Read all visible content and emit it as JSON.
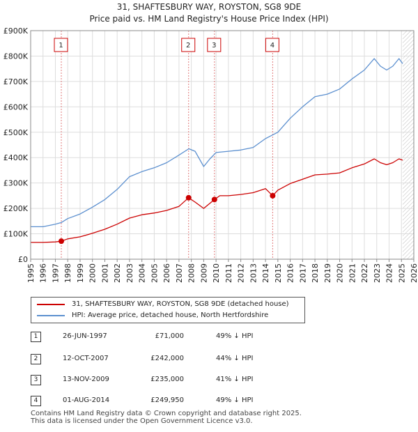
{
  "title": {
    "line1": "31, SHAFTESBURY WAY, ROYSTON, SG8 9DE",
    "line2": "Price paid vs. HM Land Registry's House Price Index (HPI)"
  },
  "legend": {
    "red_label": "31, SHAFTESBURY WAY, ROYSTON, SG8 9DE (detached house)",
    "blue_label": "HPI: Average price, detached house, North Hertfordshire"
  },
  "transactions": [
    {
      "num": "1",
      "date": "26-JUN-1997",
      "price": "£71,000",
      "hpi": "49% ↓ HPI"
    },
    {
      "num": "2",
      "date": "12-OCT-2007",
      "price": "£242,000",
      "hpi": "44% ↓ HPI"
    },
    {
      "num": "3",
      "date": "13-NOV-2009",
      "price": "£235,000",
      "hpi": "41% ↓ HPI"
    },
    {
      "num": "4",
      "date": "01-AUG-2014",
      "price": "£249,950",
      "hpi": "49% ↓ HPI"
    }
  ],
  "footer": {
    "line1": "Contains HM Land Registry data © Crown copyright and database right 2025.",
    "line2": "This data is licensed under the Open Government Licence v3.0."
  },
  "colors": {
    "red": "#cc0000",
    "blue": "#5b8fcf",
    "grid": "#dddddd",
    "vline": "#e07a7a",
    "shade": "#dce6f4"
  },
  "chart_data": {
    "type": "line",
    "title": "Price paid vs. HM Land Registry's House Price Index (HPI)",
    "xlabel": "",
    "ylabel": "",
    "xlim": [
      1995,
      2026
    ],
    "ylim": [
      0,
      900000
    ],
    "yticks": [
      0,
      100000,
      200000,
      300000,
      400000,
      500000,
      600000,
      700000,
      800000,
      900000
    ],
    "ytick_labels": [
      "£0",
      "£100K",
      "£200K",
      "£300K",
      "£400K",
      "£500K",
      "£600K",
      "£700K",
      "£800K",
      "£900K"
    ],
    "xticks": [
      1995,
      1996,
      1997,
      1998,
      1999,
      2000,
      2001,
      2002,
      2003,
      2004,
      2005,
      2006,
      2007,
      2008,
      2009,
      2010,
      2011,
      2012,
      2013,
      2014,
      2015,
      2016,
      2017,
      2018,
      2019,
      2020,
      2021,
      2022,
      2023,
      2024,
      2025,
      2026
    ],
    "future_from": 2025.1,
    "series": [
      {
        "name": "HPI: Average price, detached house, North Hertfordshire",
        "color": "#5b8fcf",
        "x": [
          1995,
          1996,
          1997,
          1997.5,
          1998,
          1999,
          2000,
          2001,
          2002,
          2003,
          2004,
          2005,
          2006,
          2007,
          2007.8,
          2008.3,
          2009,
          2009.5,
          2010,
          2011,
          2012,
          2013,
          2014,
          2014.6,
          2015,
          2016,
          2017,
          2018,
          2019,
          2020,
          2021,
          2022,
          2022.8,
          2023.3,
          2023.8,
          2024.3,
          2024.8,
          2025.1
        ],
        "y": [
          128000,
          128000,
          138000,
          145000,
          160000,
          178000,
          205000,
          235000,
          275000,
          325000,
          345000,
          360000,
          380000,
          410000,
          435000,
          425000,
          365000,
          395000,
          420000,
          425000,
          430000,
          440000,
          475000,
          490000,
          500000,
          555000,
          600000,
          640000,
          650000,
          670000,
          710000,
          745000,
          790000,
          760000,
          745000,
          760000,
          790000,
          770000
        ]
      },
      {
        "name": "31, SHAFTESBURY WAY, ROYSTON, SG8 9DE (detached house)",
        "color": "#cc0000",
        "x": [
          1995,
          1996,
          1997,
          1997.48,
          1998,
          1999,
          2000,
          2001,
          2002,
          2003,
          2004,
          2005,
          2006,
          2007,
          2007.78,
          2008.3,
          2009,
          2009.87,
          2010.3,
          2011,
          2012,
          2013,
          2014,
          2014.58,
          2015,
          2016,
          2017,
          2018,
          2019,
          2020,
          2021,
          2022,
          2022.8,
          2023.3,
          2023.8,
          2024.3,
          2024.8,
          2025.1
        ],
        "y": [
          66000,
          66000,
          68000,
          71000,
          80000,
          88000,
          102000,
          118000,
          138000,
          162000,
          175000,
          182000,
          192000,
          208000,
          242000,
          225000,
          200000,
          235000,
          250000,
          250000,
          255000,
          262000,
          278000,
          249950,
          272000,
          298000,
          315000,
          332000,
          335000,
          340000,
          360000,
          375000,
          395000,
          380000,
          372000,
          380000,
          395000,
          390000
        ]
      }
    ],
    "sales": [
      {
        "label": "1",
        "x": 1997.48,
        "y": 71000
      },
      {
        "label": "2",
        "x": 2007.78,
        "y": 242000
      },
      {
        "label": "3",
        "x": 2009.87,
        "y": 235000
      },
      {
        "label": "4",
        "x": 2014.58,
        "y": 249950
      }
    ]
  }
}
